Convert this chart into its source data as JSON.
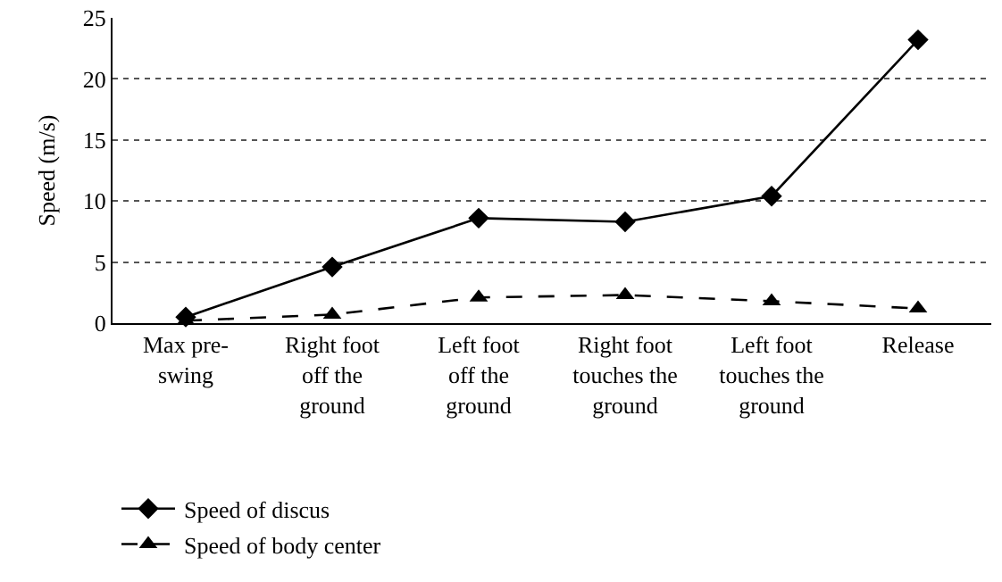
{
  "chart_data": {
    "type": "line",
    "ylabel": "Speed (m/s)",
    "categories": [
      "Max pre-swing",
      "Right foot off the ground",
      "Left foot off the ground",
      "Right foot touches the ground",
      "Left foot touches the ground",
      "Release"
    ],
    "series": [
      {
        "name": "Speed of discus",
        "color": "#000000",
        "values": [
          0.5,
          4.6,
          8.6,
          8.3,
          10.4,
          23.2
        ],
        "marker": "diamond",
        "line_style": "solid"
      },
      {
        "name": "Speed of body center",
        "color": "#000000",
        "values": [
          0.2,
          0.7,
          2.1,
          2.3,
          1.8,
          1.2
        ],
        "marker": "triangle",
        "line_style": "dashed"
      }
    ],
    "ylim": [
      0,
      25
    ],
    "yticks": [
      0,
      5,
      10,
      15,
      20,
      25
    ],
    "grid": "y",
    "legend": "bottom left"
  }
}
